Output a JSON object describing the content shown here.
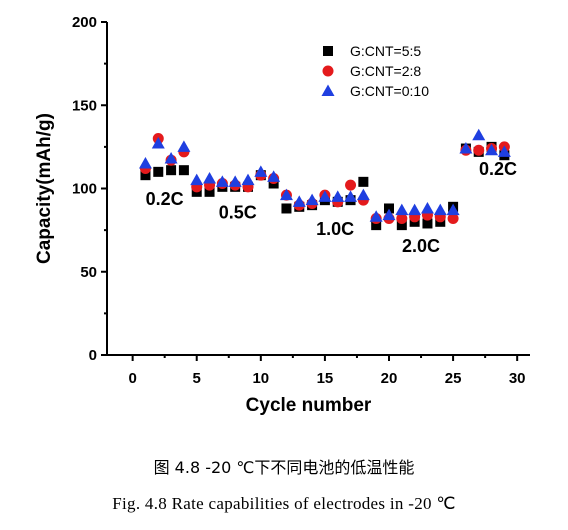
{
  "chart_data": {
    "type": "scatter",
    "xlabel": "Cycle number",
    "ylabel": "Capacity(mAh/g)",
    "xlim": [
      -2,
      31
    ],
    "ylim": [
      0,
      200
    ],
    "x_ticks": [
      0,
      5,
      10,
      15,
      20,
      25,
      30
    ],
    "y_ticks": [
      0,
      50,
      100,
      150,
      200
    ],
    "legend_position": "top-right",
    "series": [
      {
        "name": "G:CNT=5:5",
        "marker": "square",
        "color": "#000000",
        "x": [
          1,
          2,
          3,
          4,
          5,
          6,
          7,
          8,
          9,
          10,
          11,
          12,
          13,
          14,
          15,
          16,
          17,
          18,
          19,
          20,
          21,
          22,
          23,
          24,
          25,
          26,
          27,
          28,
          29
        ],
        "y": [
          108,
          110,
          111,
          111,
          98,
          98,
          101,
          101,
          101,
          108,
          103,
          88,
          89,
          90,
          93,
          92,
          93,
          104,
          78,
          88,
          78,
          80,
          79,
          80,
          89,
          124,
          122,
          125,
          120
        ]
      },
      {
        "name": "G:CNT=2:8",
        "marker": "circle",
        "color": "#e41a1c",
        "x": [
          1,
          2,
          3,
          4,
          5,
          6,
          7,
          8,
          9,
          10,
          11,
          12,
          13,
          14,
          15,
          16,
          17,
          18,
          19,
          20,
          21,
          22,
          23,
          24,
          25,
          26,
          27,
          28,
          29
        ],
        "y": [
          112,
          130,
          117,
          122,
          101,
          102,
          103,
          102,
          101,
          108,
          106,
          96,
          90,
          91,
          96,
          92,
          102,
          93,
          82,
          82,
          82,
          83,
          84,
          83,
          82,
          123,
          123,
          124,
          125
        ]
      },
      {
        "name": "G:CNT=0:10",
        "marker": "triangle",
        "color": "#1f3fe0",
        "x": [
          1,
          2,
          3,
          4,
          5,
          6,
          7,
          8,
          9,
          10,
          11,
          12,
          13,
          14,
          15,
          16,
          17,
          18,
          19,
          20,
          21,
          22,
          23,
          24,
          25,
          26,
          27,
          28,
          29
        ],
        "y": [
          115,
          127,
          118,
          125,
          105,
          106,
          104,
          104,
          105,
          110,
          107,
          96,
          92,
          93,
          95,
          95,
          95,
          96,
          83,
          84,
          87,
          87,
          88,
          87,
          87,
          124,
          132,
          123,
          122
        ]
      }
    ],
    "annotations": [
      {
        "text": "0.2C",
        "x": 2.5,
        "y": 90
      },
      {
        "text": "0.5C",
        "x": 8.2,
        "y": 82
      },
      {
        "text": "1.0C",
        "x": 15.8,
        "y": 72
      },
      {
        "text": "2.0C",
        "x": 22.5,
        "y": 62
      },
      {
        "text": "0.2C",
        "x": 28.5,
        "y": 108
      }
    ]
  },
  "caption_cn": "图 4.8  -20 ℃下不同电池的低温性能",
  "caption_en": "Fig. 4.8 Rate capabilities of electrodes in -20 ℃"
}
